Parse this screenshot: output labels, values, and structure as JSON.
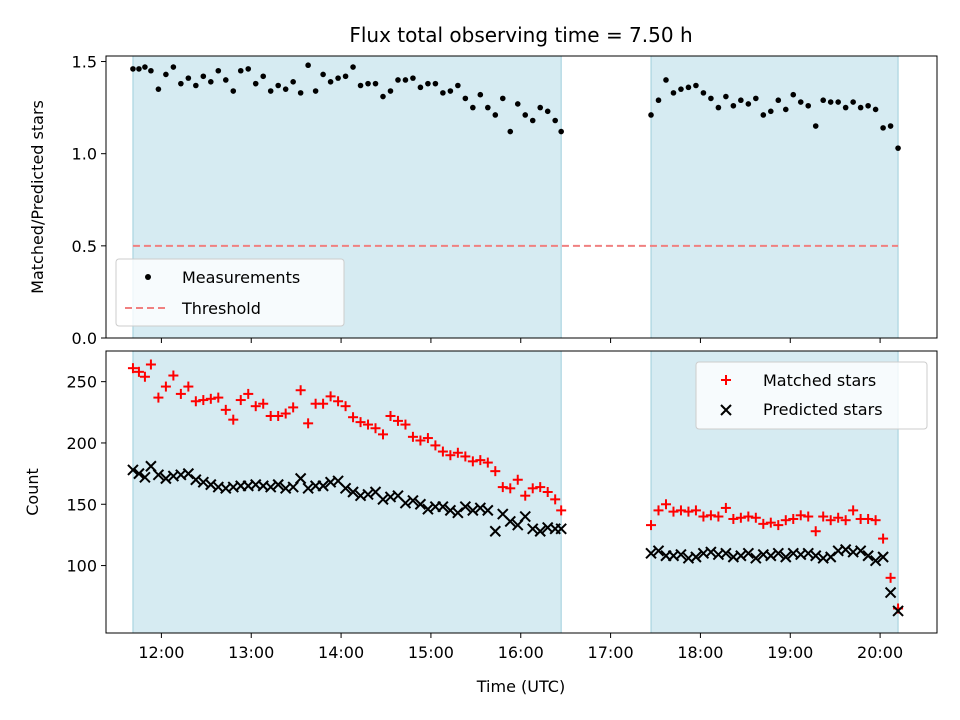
{
  "chart_data": [
    {
      "type": "scatter",
      "title": "Flux total observing time = 7.50 h",
      "xlabel": "",
      "ylabel": "Matched/Predicted stars",
      "xlim": [
        "11:23",
        "20:38"
      ],
      "ylim": [
        0,
        1.53
      ],
      "yticks": [
        {
          "value": 0.0,
          "label": "0.0"
        },
        {
          "value": 0.5,
          "label": "0.5"
        },
        {
          "value": 1.0,
          "label": "1.0"
        },
        {
          "value": 1.5,
          "label": "1.5"
        }
      ],
      "shaded_intervals": [
        [
          "11:41",
          "16:27"
        ],
        [
          "17:27",
          "20:12"
        ]
      ],
      "threshold": {
        "name": "Threshold",
        "value": 0.5,
        "color": "#f08080",
        "style": "dashed"
      },
      "series": [
        {
          "name": "Measurements",
          "color": "#000000",
          "marker": "dot",
          "x": [
            "11:41",
            "11:45",
            "11:49",
            "11:53",
            "11:58",
            "12:03",
            "12:08",
            "12:13",
            "12:18",
            "12:23",
            "12:28",
            "12:33",
            "12:38",
            "12:43",
            "12:48",
            "12:53",
            "12:58",
            "13:03",
            "13:08",
            "13:13",
            "13:18",
            "13:23",
            "13:28",
            "13:33",
            "13:38",
            "13:43",
            "13:48",
            "13:53",
            "13:58",
            "14:03",
            "14:08",
            "14:13",
            "14:18",
            "14:23",
            "14:28",
            "14:33",
            "14:38",
            "14:43",
            "14:48",
            "14:53",
            "14:58",
            "15:03",
            "15:08",
            "15:13",
            "15:18",
            "15:23",
            "15:28",
            "15:33",
            "15:38",
            "15:43",
            "15:48",
            "15:53",
            "15:58",
            "16:03",
            "16:08",
            "16:13",
            "16:18",
            "16:23",
            "16:27",
            "17:27",
            "17:32",
            "17:37",
            "17:42",
            "17:47",
            "17:52",
            "17:57",
            "18:02",
            "18:07",
            "18:12",
            "18:17",
            "18:22",
            "18:27",
            "18:32",
            "18:37",
            "18:42",
            "18:47",
            "18:52",
            "18:57",
            "19:02",
            "19:07",
            "19:12",
            "19:17",
            "19:22",
            "19:27",
            "19:32",
            "19:37",
            "19:42",
            "19:47",
            "19:52",
            "19:57",
            "20:02",
            "20:07",
            "20:12"
          ],
          "y": [
            1.46,
            1.46,
            1.47,
            1.45,
            1.35,
            1.43,
            1.47,
            1.38,
            1.41,
            1.37,
            1.42,
            1.39,
            1.45,
            1.4,
            1.34,
            1.45,
            1.46,
            1.38,
            1.42,
            1.34,
            1.37,
            1.35,
            1.39,
            1.33,
            1.48,
            1.34,
            1.43,
            1.39,
            1.41,
            1.42,
            1.47,
            1.37,
            1.38,
            1.38,
            1.31,
            1.34,
            1.4,
            1.4,
            1.41,
            1.36,
            1.38,
            1.38,
            1.33,
            1.34,
            1.37,
            1.3,
            1.25,
            1.32,
            1.25,
            1.21,
            1.3,
            1.12,
            1.27,
            1.21,
            1.18,
            1.25,
            1.23,
            1.18,
            1.12,
            1.21,
            1.29,
            1.4,
            1.33,
            1.35,
            1.36,
            1.37,
            1.33,
            1.3,
            1.25,
            1.31,
            1.26,
            1.29,
            1.27,
            1.3,
            1.21,
            1.23,
            1.29,
            1.24,
            1.32,
            1.28,
            1.26,
            1.15,
            1.29,
            1.28,
            1.28,
            1.25,
            1.28,
            1.25,
            1.26,
            1.24,
            1.14,
            1.15,
            1.03
          ]
        }
      ],
      "legend": {
        "placement": "lower-left",
        "entries": [
          "Measurements",
          "Threshold"
        ]
      }
    },
    {
      "type": "scatter",
      "title": "",
      "xlabel": "Time (UTC)",
      "ylabel": "Count",
      "xlim": [
        "11:23",
        "20:38"
      ],
      "ylim": [
        45,
        275
      ],
      "xticks": [
        {
          "value": "12:00",
          "label": "12:00"
        },
        {
          "value": "13:00",
          "label": "13:00"
        },
        {
          "value": "14:00",
          "label": "14:00"
        },
        {
          "value": "15:00",
          "label": "15:00"
        },
        {
          "value": "16:00",
          "label": "16:00"
        },
        {
          "value": "17:00",
          "label": "17:00"
        },
        {
          "value": "18:00",
          "label": "18:00"
        },
        {
          "value": "19:00",
          "label": "19:00"
        },
        {
          "value": "20:00",
          "label": "20:00"
        }
      ],
      "yticks": [
        {
          "value": 100,
          "label": "100"
        },
        {
          "value": 150,
          "label": "150"
        },
        {
          "value": 200,
          "label": "200"
        },
        {
          "value": 250,
          "label": "250"
        }
      ],
      "shaded_intervals": [
        [
          "11:41",
          "16:27"
        ],
        [
          "17:27",
          "20:12"
        ]
      ],
      "series": [
        {
          "name": "Matched stars",
          "color": "#ff0000",
          "marker": "plus",
          "x": [
            "11:41",
            "11:45",
            "11:49",
            "11:53",
            "11:58",
            "12:03",
            "12:08",
            "12:13",
            "12:18",
            "12:23",
            "12:28",
            "12:33",
            "12:38",
            "12:43",
            "12:48",
            "12:53",
            "12:58",
            "13:03",
            "13:08",
            "13:13",
            "13:18",
            "13:23",
            "13:28",
            "13:33",
            "13:38",
            "13:43",
            "13:48",
            "13:53",
            "13:58",
            "14:03",
            "14:08",
            "14:13",
            "14:18",
            "14:23",
            "14:28",
            "14:33",
            "14:38",
            "14:43",
            "14:48",
            "14:53",
            "14:58",
            "15:03",
            "15:08",
            "15:13",
            "15:18",
            "15:23",
            "15:28",
            "15:33",
            "15:38",
            "15:43",
            "15:48",
            "15:53",
            "15:58",
            "16:03",
            "16:08",
            "16:13",
            "16:18",
            "16:23",
            "16:27",
            "17:27",
            "17:32",
            "17:37",
            "17:42",
            "17:47",
            "17:52",
            "17:57",
            "18:02",
            "18:07",
            "18:12",
            "18:17",
            "18:22",
            "18:27",
            "18:32",
            "18:37",
            "18:42",
            "18:47",
            "18:52",
            "18:57",
            "19:02",
            "19:07",
            "19:12",
            "19:17",
            "19:22",
            "19:27",
            "19:32",
            "19:37",
            "19:42",
            "19:47",
            "19:52",
            "19:57",
            "20:02",
            "20:07",
            "20:12"
          ],
          "y": [
            261,
            258,
            254,
            264,
            237,
            246,
            255,
            240,
            246,
            234,
            235,
            236,
            237,
            227,
            219,
            235,
            240,
            230,
            232,
            222,
            222,
            224,
            229,
            243,
            216,
            232,
            232,
            238,
            234,
            230,
            221,
            217,
            215,
            212,
            207,
            222,
            218,
            215,
            205,
            202,
            204,
            198,
            193,
            190,
            192,
            189,
            185,
            186,
            184,
            177,
            164,
            163,
            170,
            157,
            163,
            164,
            160,
            154,
            145,
            133,
            145,
            150,
            144,
            145,
            144,
            145,
            140,
            141,
            140,
            147,
            138,
            139,
            140,
            139,
            134,
            135,
            133,
            137,
            138,
            141,
            140,
            128,
            140,
            137,
            139,
            137,
            145,
            138,
            138,
            137,
            122,
            90,
            65
          ]
        },
        {
          "name": "Predicted stars",
          "color": "#000000",
          "marker": "x",
          "x": [
            "11:41",
            "11:45",
            "11:49",
            "11:53",
            "11:58",
            "12:03",
            "12:08",
            "12:13",
            "12:18",
            "12:23",
            "12:28",
            "12:33",
            "12:38",
            "12:43",
            "12:48",
            "12:53",
            "12:58",
            "13:03",
            "13:08",
            "13:13",
            "13:18",
            "13:23",
            "13:28",
            "13:33",
            "13:38",
            "13:43",
            "13:48",
            "13:53",
            "13:58",
            "14:03",
            "14:08",
            "14:13",
            "14:18",
            "14:23",
            "14:28",
            "14:33",
            "14:38",
            "14:43",
            "14:48",
            "14:53",
            "14:58",
            "15:03",
            "15:08",
            "15:13",
            "15:18",
            "15:23",
            "15:28",
            "15:33",
            "15:38",
            "15:43",
            "15:48",
            "15:53",
            "15:58",
            "16:03",
            "16:08",
            "16:13",
            "16:18",
            "16:23",
            "16:27",
            "17:27",
            "17:32",
            "17:37",
            "17:42",
            "17:47",
            "17:52",
            "17:57",
            "18:02",
            "18:07",
            "18:12",
            "18:17",
            "18:22",
            "18:27",
            "18:32",
            "18:37",
            "18:42",
            "18:47",
            "18:52",
            "18:57",
            "19:02",
            "19:07",
            "19:12",
            "19:17",
            "19:22",
            "19:27",
            "19:32",
            "19:37",
            "19:42",
            "19:47",
            "19:52",
            "19:57",
            "20:02",
            "20:07",
            "20:12"
          ],
          "y": [
            178,
            175,
            172,
            181,
            174,
            171,
            173,
            174,
            175,
            170,
            168,
            166,
            164,
            163,
            164,
            165,
            165,
            166,
            165,
            164,
            166,
            163,
            164,
            171,
            163,
            165,
            165,
            168,
            169,
            163,
            160,
            157,
            158,
            160,
            154,
            156,
            157,
            151,
            153,
            150,
            146,
            148,
            148,
            145,
            143,
            148,
            145,
            147,
            145,
            128,
            142,
            136,
            133,
            140,
            130,
            128,
            131,
            130,
            130,
            110,
            112,
            108,
            108,
            109,
            106,
            107,
            110,
            111,
            109,
            110,
            107,
            108,
            110,
            106,
            109,
            108,
            110,
            107,
            110,
            109,
            110,
            108,
            106,
            107,
            112,
            113,
            111,
            112,
            108,
            104,
            107,
            78,
            63
          ]
        }
      ],
      "legend": {
        "placement": "upper-right",
        "entries": [
          "Matched stars",
          "Predicted stars"
        ]
      }
    }
  ]
}
